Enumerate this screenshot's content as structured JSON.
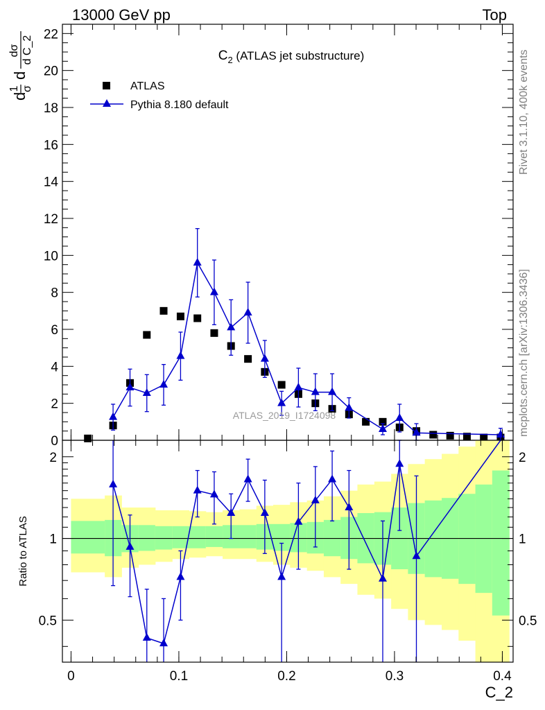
{
  "header": {
    "beam": "13000 GeV pp",
    "process": "Top"
  },
  "side_labels": {
    "rivet": "Rivet 3.1.10,  400k events",
    "mcplots": "mcplots.cern.ch [arXiv:1306.3436]"
  },
  "watermark": "ATLAS_2019_I1724098",
  "colors": {
    "data": "#000000",
    "mc": "#0000cc",
    "band_inner": "#99ff99",
    "band_outer": "#ffff99"
  },
  "chart_data": [
    {
      "type": "scatter",
      "panel": "main",
      "title": "C2 (ATLAS jet substructure)",
      "title_main": "C",
      "title_sub": "2",
      "title_rest": " (ATLAS jet substructure)",
      "ylabel_parts": [
        "d",
        "1",
        "σ",
        "d",
        "dσ",
        "d C_2"
      ],
      "xlim": [
        -0.008,
        0.41
      ],
      "ylim": [
        0,
        22.5
      ],
      "yticks": [
        0,
        2,
        4,
        6,
        8,
        10,
        12,
        14,
        16,
        18,
        20,
        22
      ],
      "legend_position": "top-left",
      "series": [
        {
          "name": "ATLAS",
          "marker": "square",
          "x": [
            0.0156,
            0.039,
            0.0547,
            0.0703,
            0.0859,
            0.1016,
            0.1172,
            0.1328,
            0.1484,
            0.1641,
            0.1797,
            0.1953,
            0.2109,
            0.2266,
            0.2422,
            0.2578,
            0.2734,
            0.2891,
            0.3047,
            0.3203,
            0.3359,
            0.3516,
            0.3672,
            0.3828,
            0.3984
          ],
          "y": [
            0.1,
            0.8,
            3.1,
            5.7,
            7.0,
            6.7,
            6.6,
            5.8,
            5.1,
            4.4,
            3.7,
            3.0,
            2.5,
            2.0,
            1.7,
            1.4,
            1.0,
            1.0,
            0.7,
            0.5,
            0.3,
            0.25,
            0.2,
            0.15,
            0.15
          ]
        },
        {
          "name": "Pythia 8.180 default",
          "marker": "triangle",
          "x": [
            0.039,
            0.0547,
            0.0703,
            0.0859,
            0.1016,
            0.1172,
            0.1328,
            0.1484,
            0.1641,
            0.1797,
            0.1953,
            0.2109,
            0.2266,
            0.2422,
            0.2578,
            0.2891,
            0.3047,
            0.3203,
            0.3984
          ],
          "y": [
            1.25,
            2.85,
            2.55,
            3.0,
            4.55,
            9.6,
            8.0,
            6.1,
            6.9,
            4.4,
            2.0,
            2.85,
            2.6,
            2.6,
            1.75,
            0.6,
            1.2,
            0.4,
            0.3
          ],
          "err": [
            0.7,
            1.0,
            1.0,
            1.1,
            1.3,
            1.85,
            1.75,
            1.5,
            1.65,
            1.0,
            0.65,
            1.05,
            1.0,
            1.0,
            0.55,
            0.3,
            0.75,
            0.5,
            0.35
          ]
        }
      ]
    },
    {
      "type": "line",
      "panel": "ratio",
      "ylabel": "Ratio to ATLAS",
      "xlabel": "C_2",
      "xlim": [
        -0.008,
        0.41
      ],
      "ylim": [
        0.35,
        2.3
      ],
      "yticks": [
        0.5,
        1,
        2
      ],
      "xticks": [
        0,
        0.1,
        0.2,
        0.3,
        0.4
      ],
      "x_ticklabels": [
        "0",
        "0.1",
        "0.2",
        "0.3",
        "0.4"
      ],
      "bands": {
        "edges": [
          0.0,
          0.0313,
          0.0469,
          0.0625,
          0.0781,
          0.0938,
          0.1094,
          0.125,
          0.1406,
          0.1563,
          0.1719,
          0.1875,
          0.2031,
          0.2188,
          0.2344,
          0.25,
          0.2656,
          0.2813,
          0.2969,
          0.3125,
          0.3281,
          0.3438,
          0.3594,
          0.375,
          0.3906,
          0.4063
        ],
        "inner_lo": [
          0.88,
          0.86,
          0.89,
          0.9,
          0.91,
          0.92,
          0.92,
          0.93,
          0.92,
          0.92,
          0.91,
          0.9,
          0.89,
          0.88,
          0.86,
          0.84,
          0.81,
          0.8,
          0.77,
          0.74,
          0.72,
          0.71,
          0.68,
          0.63,
          0.52
        ],
        "inner_hi": [
          1.16,
          1.17,
          1.12,
          1.12,
          1.11,
          1.11,
          1.11,
          1.11,
          1.12,
          1.12,
          1.13,
          1.13,
          1.14,
          1.15,
          1.17,
          1.2,
          1.24,
          1.25,
          1.3,
          1.35,
          1.38,
          1.41,
          1.46,
          1.58,
          1.78
        ],
        "outer_lo": [
          0.75,
          0.72,
          0.78,
          0.8,
          0.82,
          0.84,
          0.85,
          0.86,
          0.84,
          0.84,
          0.82,
          0.8,
          0.78,
          0.76,
          0.72,
          0.68,
          0.62,
          0.6,
          0.55,
          0.5,
          0.48,
          0.46,
          0.42,
          0.35,
          0.3
        ],
        "outer_hi": [
          1.4,
          1.44,
          1.3,
          1.3,
          1.27,
          1.27,
          1.26,
          1.25,
          1.27,
          1.28,
          1.32,
          1.33,
          1.36,
          1.38,
          1.43,
          1.5,
          1.58,
          1.62,
          1.73,
          1.88,
          1.96,
          2.05,
          2.18,
          2.5,
          2.9
        ]
      },
      "series": [
        {
          "name": "Pythia 8.180 default",
          "x": [
            0.039,
            0.0547,
            0.0703,
            0.0859,
            0.1016,
            0.1172,
            0.1328,
            0.1484,
            0.1641,
            0.1797,
            0.1953,
            0.2109,
            0.2266,
            0.2422,
            0.2578,
            0.2891,
            0.3047,
            0.3203,
            0.3984
          ],
          "y": [
            1.58,
            0.93,
            0.43,
            0.41,
            0.72,
            1.5,
            1.45,
            1.24,
            1.65,
            1.24,
            0.72,
            1.15,
            1.38,
            1.65,
            1.3,
            0.71,
            1.88,
            0.86,
            2.55
          ],
          "lo": [
            0.67,
            0.61,
            0.26,
            0.25,
            0.5,
            1.2,
            1.13,
            1.0,
            1.37,
            0.88,
            0.3,
            0.77,
            0.93,
            1.16,
            0.77,
            0.3,
            1.07,
            0.3,
            2.3
          ],
          "hi": [
            2.33,
            1.22,
            0.65,
            0.6,
            0.9,
            1.78,
            1.76,
            1.46,
            1.96,
            1.64,
            0.96,
            1.6,
            1.84,
            2.1,
            1.78,
            1.16,
            2.3,
            1.7,
            2.6
          ]
        }
      ]
    }
  ]
}
